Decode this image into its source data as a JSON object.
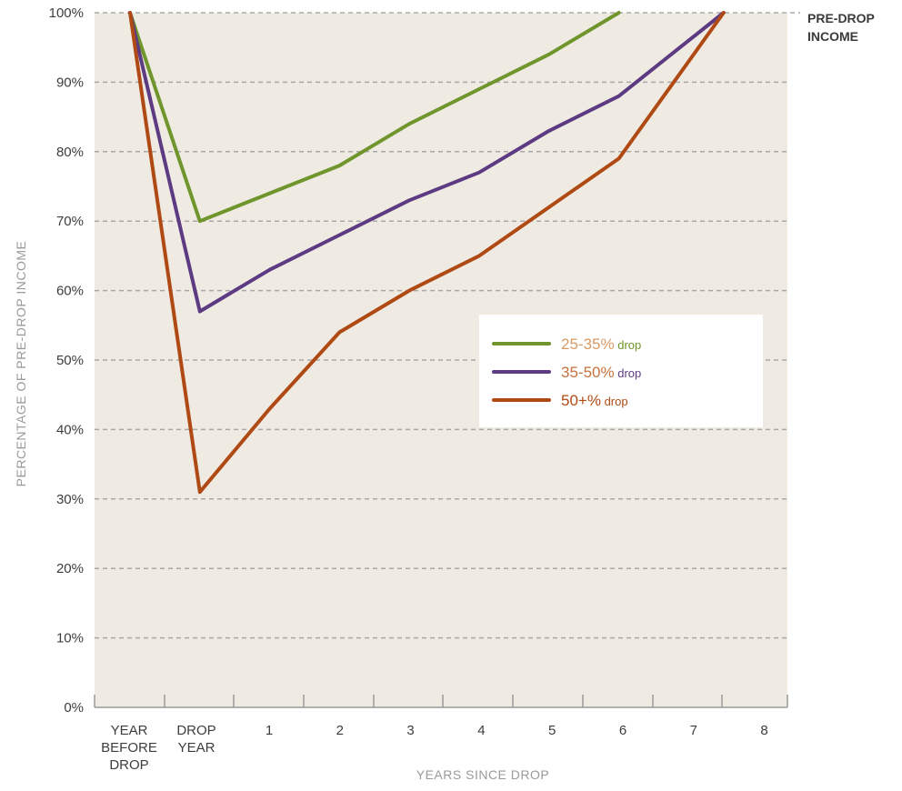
{
  "chart_data": {
    "type": "line",
    "ylabel": "PERCENTAGE OF PRE-DROP INCOME",
    "xlabel": "YEARS SINCE DROP",
    "reference_label_lines": [
      "PRE-DROP",
      "INCOME"
    ],
    "x_ticks": [
      {
        "lines": [
          "YEAR",
          "BEFORE",
          "DROP"
        ]
      },
      {
        "lines": [
          "DROP",
          "YEAR"
        ]
      },
      {
        "lines": [
          "1"
        ]
      },
      {
        "lines": [
          "2"
        ]
      },
      {
        "lines": [
          "3"
        ]
      },
      {
        "lines": [
          "4"
        ]
      },
      {
        "lines": [
          "5"
        ]
      },
      {
        "lines": [
          "6"
        ]
      },
      {
        "lines": [
          "7"
        ]
      },
      {
        "lines": [
          "8"
        ]
      }
    ],
    "y_ticks": [
      "0%",
      "10%",
      "20%",
      "30%",
      "40%",
      "50%",
      "60%",
      "70%",
      "80%",
      "90%",
      "100%"
    ],
    "ylim": [
      0,
      100
    ],
    "grid": true,
    "colors": {
      "background": "#efebe3",
      "grid": "#a9a9a9",
      "axis": "#9a9a9a"
    },
    "legend": {
      "position": "right-middle",
      "entries": [
        {
          "label": "25-35%",
          "unit": " drop",
          "color": "#6f952c",
          "label_color": "#d89a63"
        },
        {
          "label": "35-50%",
          "unit": " drop",
          "color": "#5c3b82",
          "label_color": "#c5713a"
        },
        {
          "label": "50+%",
          "unit": " drop",
          "color": "#b04a14",
          "label_color": "#b04a14"
        }
      ]
    },
    "series": [
      {
        "points": [
          [
            0,
            100
          ],
          [
            1,
            70
          ],
          [
            2,
            74
          ],
          [
            3,
            78
          ],
          [
            4,
            84
          ],
          [
            5,
            89
          ],
          [
            6,
            94
          ],
          [
            7,
            100
          ]
        ]
      },
      {
        "points": [
          [
            0,
            100
          ],
          [
            1,
            57
          ],
          [
            2,
            63
          ],
          [
            3,
            68
          ],
          [
            4,
            73
          ],
          [
            5,
            77
          ],
          [
            6,
            83
          ],
          [
            7,
            88
          ],
          [
            8.5,
            100
          ]
        ]
      },
      {
        "points": [
          [
            0,
            100
          ],
          [
            1,
            31
          ],
          [
            2,
            43
          ],
          [
            3,
            54
          ],
          [
            4,
            60
          ],
          [
            5,
            65
          ],
          [
            6,
            72
          ],
          [
            7,
            79
          ],
          [
            8.5,
            100
          ]
        ]
      }
    ]
  }
}
